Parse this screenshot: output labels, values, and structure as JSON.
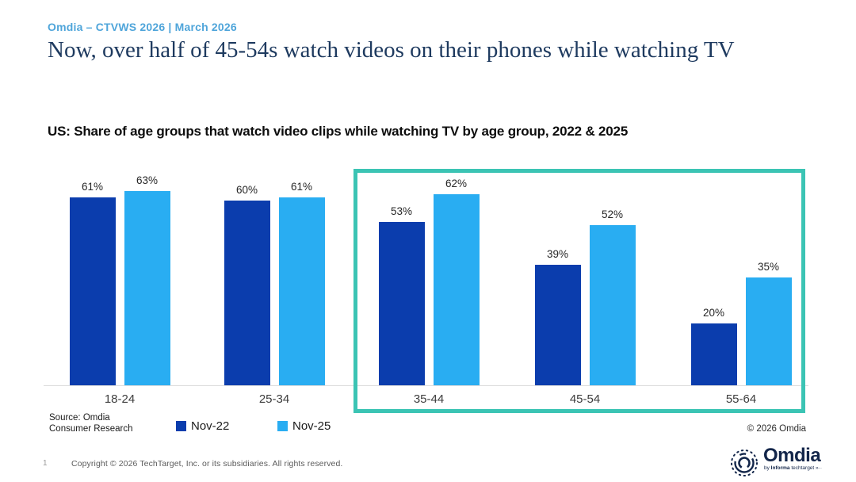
{
  "header": {
    "eyebrow": "Omdia – CTVWS 2026 | March 2026",
    "title": "Now, over half of 45-54s watch videos on their phones while watching TV",
    "subtitle": "US: Share of age groups that watch video clips while watching TV by age group, 2022 & 2025"
  },
  "chart_data": {
    "type": "bar",
    "title": "US: Share of age groups that watch video clips while watching TV by age group, 2022 & 2025",
    "categories": [
      "18-24",
      "25-34",
      "35-44",
      "45-54",
      "55-64"
    ],
    "series": [
      {
        "name": "Nov-22",
        "color": "#0b3dad",
        "values": [
          61,
          60,
          53,
          39,
          20
        ]
      },
      {
        "name": "Nov-25",
        "color": "#29adf2",
        "values": [
          63,
          61,
          62,
          52,
          35
        ]
      }
    ],
    "value_suffix": "%",
    "xlabel": "",
    "ylabel": "",
    "ylim": [
      0,
      70
    ],
    "grid": false,
    "legend_position": "bottom",
    "highlight_box": {
      "categories": [
        "35-44",
        "45-54",
        "55-64"
      ],
      "color": "#3bc4b4"
    }
  },
  "chart_footer": {
    "source_line1": "Source: Omdia",
    "source_line2": "Consumer Research",
    "copyright": "© 2026 Omdia"
  },
  "footer": {
    "page_number": "1",
    "copyright": "Copyright © 2026 TechTarget, Inc. or its subsidiaries. All rights reserved.",
    "logo_text": "Omdia",
    "logo_tagline_prefix": "by ",
    "logo_tagline_bold": "Informa",
    "logo_tagline_suffix": " techtarget »··",
    "logo_icon": "omdia-rings-icon",
    "logo_color": "#13264a"
  }
}
